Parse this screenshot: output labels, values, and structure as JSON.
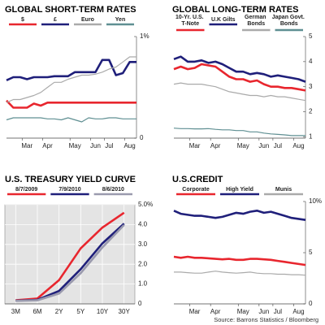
{
  "chart_data": [
    {
      "type": "line",
      "title": "GLOBAL SHORT-TERM RATES",
      "categories": [
        null,
        null,
        null,
        "Mar",
        null,
        null,
        "Apr",
        null,
        null,
        null,
        "May",
        null,
        null,
        "Jun",
        null,
        "Jul",
        null,
        null,
        "Aug",
        null
      ],
      "ylim": [
        0,
        1
      ],
      "yticks": [
        0,
        {
          "value": 1,
          "label": "1%"
        }
      ],
      "series": [
        {
          "name": "$",
          "color": "#e8262e",
          "values": [
            0.37,
            0.3,
            0.3,
            0.3,
            0.34,
            0.32,
            0.35,
            0.35,
            0.35,
            0.35,
            0.35,
            0.35,
            0.35,
            0.35,
            0.35,
            0.35,
            0.35,
            0.35,
            0.35,
            0.35
          ]
        },
        {
          "name": "£",
          "color": "#1f1f7a",
          "values": [
            0.57,
            0.6,
            0.6,
            0.58,
            0.6,
            0.6,
            0.6,
            0.61,
            0.61,
            0.61,
            0.65,
            0.65,
            0.65,
            0.65,
            0.77,
            0.77,
            0.62,
            0.64,
            0.75,
            0.75
          ]
        },
        {
          "name": "Euro",
          "color": "#aaaaaa",
          "values": [
            0.35,
            0.38,
            0.38,
            0.4,
            0.42,
            0.45,
            0.5,
            0.55,
            0.55,
            0.58,
            0.6,
            0.62,
            0.62,
            0.63,
            0.65,
            0.68,
            0.7,
            0.75,
            0.8,
            0.8
          ]
        },
        {
          "name": "Yen",
          "color": "#5f8f92",
          "values": [
            0.18,
            0.2,
            0.2,
            0.2,
            0.2,
            0.2,
            0.19,
            0.19,
            0.18,
            0.2,
            0.18,
            0.16,
            0.2,
            0.19,
            0.19,
            0.2,
            0.2,
            0.19,
            0.19,
            0.19
          ]
        }
      ]
    },
    {
      "type": "line",
      "title": "GLOBAL LONG-TERM RATES",
      "categories": [
        null,
        null,
        null,
        "Mar",
        null,
        null,
        "Apr",
        null,
        null,
        null,
        "May",
        null,
        null,
        "Jun",
        null,
        "Jul",
        null,
        null,
        "Aug",
        null
      ],
      "ylim": [
        0.95,
        5
      ],
      "yticks": [
        1,
        2,
        3,
        4,
        5
      ],
      "series": [
        {
          "name": "10-Yr. U.S. T-Note",
          "color": "#e8262e",
          "values": [
            3.7,
            3.8,
            3.7,
            3.75,
            3.9,
            3.85,
            3.8,
            3.6,
            3.4,
            3.3,
            3.3,
            3.2,
            3.25,
            3.1,
            3.0,
            3.0,
            2.95,
            2.95,
            2.9,
            2.85
          ]
        },
        {
          "name": "U.K Gilts",
          "color": "#1f1f7a",
          "values": [
            4.1,
            4.2,
            4.0,
            4.0,
            4.05,
            3.95,
            4.0,
            3.9,
            3.75,
            3.6,
            3.6,
            3.5,
            3.55,
            3.5,
            3.4,
            3.45,
            3.4,
            3.35,
            3.3,
            3.2
          ]
        },
        {
          "name": "German Bonds",
          "color": "#aaaaaa",
          "values": [
            3.1,
            3.15,
            3.1,
            3.1,
            3.1,
            3.05,
            3.0,
            2.9,
            2.8,
            2.75,
            2.7,
            2.65,
            2.65,
            2.6,
            2.65,
            2.6,
            2.6,
            2.55,
            2.5,
            2.45
          ]
        },
        {
          "name": "Japan Govt. Bonds",
          "color": "#5f8f92",
          "values": [
            1.35,
            1.33,
            1.33,
            1.32,
            1.32,
            1.33,
            1.3,
            1.28,
            1.28,
            1.25,
            1.25,
            1.2,
            1.2,
            1.15,
            1.12,
            1.1,
            1.08,
            1.05,
            1.05,
            1.05
          ]
        }
      ]
    },
    {
      "type": "line",
      "title": "U.S. TREASURY YIELD CURVE",
      "grid": true,
      "categories": [
        "3M",
        "6M",
        "2Y",
        "5Y",
        "10Y",
        "30Y"
      ],
      "ylim": [
        0,
        5
      ],
      "yticks": [
        0,
        {
          "value": 1,
          "label": "1.0"
        },
        {
          "value": 2,
          "label": "2.0"
        },
        {
          "value": 3,
          "label": "3.0"
        },
        {
          "value": 4,
          "label": "4.0"
        },
        {
          "value": 5,
          "label": "5.0%"
        }
      ],
      "series": [
        {
          "name": "8/7/2009",
          "color": "#e8262e",
          "values": [
            0.18,
            0.27,
            1.2,
            2.8,
            3.85,
            4.6
          ]
        },
        {
          "name": "7/9/2010",
          "color": "#1f1f7a",
          "values": [
            0.16,
            0.2,
            0.65,
            1.75,
            3.05,
            4.05
          ]
        },
        {
          "name": "8/6/2010",
          "color": "#9a9aae",
          "values": [
            0.15,
            0.18,
            0.52,
            1.55,
            2.85,
            3.98
          ]
        }
      ]
    },
    {
      "type": "line",
      "title": "U.S.CREDIT",
      "categories": [
        null,
        null,
        null,
        "Mar",
        null,
        null,
        "Apr",
        null,
        null,
        null,
        "May",
        null,
        null,
        "Jun",
        null,
        "Jul",
        null,
        null,
        "Aug",
        null
      ],
      "ylim": [
        0,
        10
      ],
      "yticks": [
        0,
        5,
        {
          "value": 10,
          "label": "10%"
        }
      ],
      "series": [
        {
          "name": "Corporate",
          "color": "#e8262e",
          "values": [
            4.6,
            4.5,
            4.6,
            4.5,
            4.5,
            4.45,
            4.4,
            4.35,
            4.4,
            4.3,
            4.3,
            4.4,
            4.4,
            4.35,
            4.3,
            4.2,
            4.1,
            4.0,
            3.9,
            3.8
          ]
        },
        {
          "name": "High Yield",
          "color": "#1f1f7a",
          "values": [
            9.1,
            8.8,
            8.7,
            8.6,
            8.6,
            8.5,
            8.4,
            8.5,
            8.7,
            8.9,
            8.8,
            9.0,
            9.1,
            8.9,
            9.0,
            8.8,
            8.6,
            8.4,
            8.3,
            8.2
          ]
        },
        {
          "name": "Munis",
          "color": "#aaaaaa",
          "values": [
            3.1,
            3.1,
            3.05,
            3.0,
            3.0,
            3.1,
            3.2,
            3.1,
            3.05,
            3.0,
            3.05,
            3.1,
            3.0,
            2.95,
            2.95,
            2.9,
            2.9,
            2.85,
            2.85,
            2.8
          ]
        }
      ]
    }
  ],
  "source": "Source: Barrons Statistics / Bloomberg"
}
